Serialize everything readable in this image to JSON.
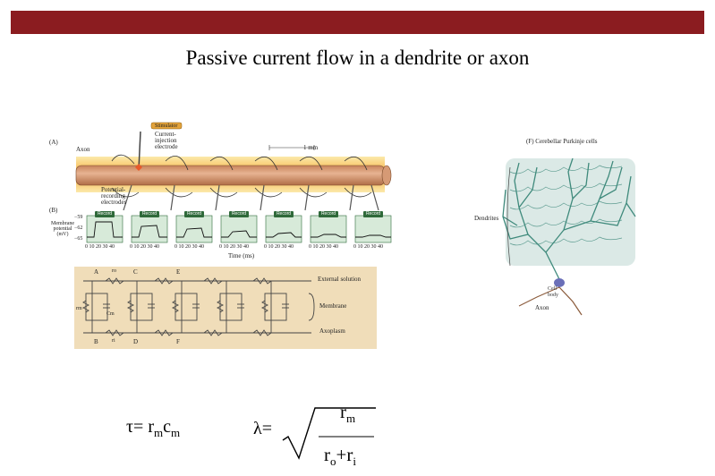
{
  "slide": {
    "title": "Passive current flow in a dendrite or axon"
  },
  "figure_a": {
    "panel_a": "(A)",
    "panel_b": "(B)",
    "axon": "Axon",
    "stimulator": "Stimulator",
    "current_injection": "Current-\ninjection\nelectrode",
    "potential_recording": "Potential-\nrecording\nelectrodes",
    "scale": "1 mm",
    "record_label": "Record",
    "y_label": "Membrane\npotential\n(mV)",
    "y_ticks": [
      "−59",
      "−62",
      "−65"
    ],
    "x_ticks": "0 10 20 30 40",
    "x_label": "Time (ms)"
  },
  "circuit": {
    "top_nodes": [
      "A",
      "C",
      "E"
    ],
    "bottom_nodes": [
      "B",
      "D",
      "F"
    ],
    "ro": "ro",
    "ri": "ri",
    "rm": "rm",
    "cm": "Cm",
    "external": "External solution",
    "membrane": "Membrane",
    "axoplasm": "Axoplasm"
  },
  "figure_f": {
    "title": "(F) Cerebellar Purkinje cells",
    "dendrites": "Dendrites",
    "cell_body": "Cell\nbody",
    "axon": "Axon"
  },
  "formulas": {
    "tau_lhs": "τ= r",
    "tau_sub1": "m",
    "tau_mid": "c",
    "tau_sub2": "m",
    "lambda_lhs": "λ=",
    "num_r": "r",
    "num_sub": "m",
    "den_r1": "r",
    "den_sub1": "o",
    "den_plus": "+r",
    "den_sub2": "i"
  },
  "colors": {
    "topbar": "#8b1c20",
    "axon_body": "#d9a07a",
    "dendrite_green": "#3f8a7c",
    "record_green": "#2f6a3a",
    "circuit_bg": "#f0ddb9"
  }
}
